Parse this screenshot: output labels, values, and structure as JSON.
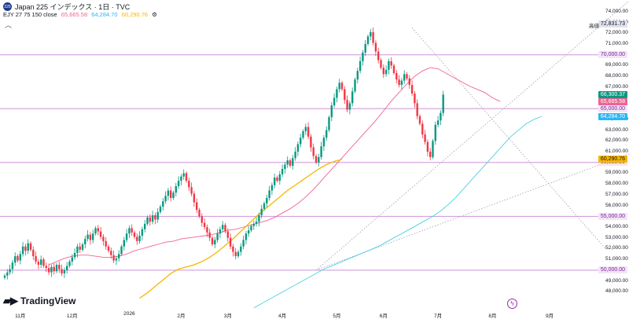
{
  "header": {
    "badge": "225",
    "title": "Japan 225 インデックス · 1日 · TVC",
    "indicator_label": "EJY 27 75 150 close",
    "ma_values": [
      {
        "text": "65,665.58",
        "color": "#f06292"
      },
      {
        "text": "64,284.70",
        "color": "#4dd0e1"
      },
      {
        "text": "60,290.76",
        "color": "#f5b700"
      }
    ],
    "settings_icon": "gear-icon",
    "collapse_icon": "chevron-up-icon"
  },
  "logo_text": "TradingView",
  "high_label": "高値",
  "price_tags": {
    "high": {
      "text": "72,831.73",
      "value": 72831.73,
      "bg": "#e0e3eb",
      "fg": "#131722"
    },
    "last": {
      "text": "66,300.37",
      "value": 66300.37,
      "bg": "#089981",
      "fg": "#ffffff"
    },
    "ma27": {
      "text": "65,665.58",
      "value": 65665.58,
      "bg": "#f06292",
      "fg": "#ffffff"
    },
    "ma75": {
      "text": "64,284.70",
      "value": 64284.7,
      "bg": "#29b6f6",
      "fg": "#ffffff"
    },
    "ma150": {
      "text": "60,290.76",
      "value": 60290.76,
      "bg": "#f5b700",
      "fg": "#131722"
    }
  },
  "hlines": [
    {
      "text": "70,000.00",
      "value": 70000
    },
    {
      "text": "65,000.00",
      "value": 65000
    },
    {
      "text": "60,000.00",
      "value": 60000
    },
    {
      "text": "55,000.00",
      "value": 55000
    },
    {
      "text": "50,000.00",
      "value": 50000
    }
  ],
  "colors": {
    "up": "#089981",
    "down": "#f23645",
    "hline": "#ce93d8",
    "ma27": "#f06292",
    "ma75": "#4dd0e1",
    "ma150": "#f5b700",
    "trend": "#9e9eaf"
  },
  "chart_data": {
    "type": "candlestick",
    "title": "Japan 225 インデックス · 1日 · TVC",
    "ylim": [
      47000,
      74500
    ],
    "y_ticks": [
      "74,000.00",
      "73,000.00",
      "72,000.00",
      "71,000.00",
      "69,000.00",
      "68,000.00",
      "67,000.00",
      "64,000.00",
      "63,000.00",
      "62,000.00",
      "61,000.00",
      "59,000.00",
      "58,000.00",
      "57,000.00",
      "56,000.00",
      "54,000.00",
      "53,000.00",
      "52,000.00",
      "51,000.00",
      "49,000.00",
      "48,000.00"
    ],
    "y_tick_values": [
      74000,
      73000,
      72000,
      71000,
      69000,
      68000,
      67000,
      64000,
      63000,
      62000,
      61000,
      59000,
      58000,
      57000,
      56000,
      54000,
      53000,
      52000,
      51000,
      49000,
      48000
    ],
    "x_ticks": [
      "11月",
      "12月",
      "2026",
      "2月",
      "3月",
      "4月",
      "5月",
      "6月",
      "7月",
      "8月",
      "9月"
    ],
    "x_tick_index": [
      6,
      26,
      48,
      68,
      86,
      107,
      128,
      146,
      167,
      188,
      210
    ],
    "close": [
      49500,
      49800,
      50100,
      50700,
      51300,
      50900,
      51500,
      52200,
      51800,
      52500,
      51900,
      51300,
      50800,
      50500,
      51000,
      50400,
      50200,
      49800,
      50300,
      49900,
      50500,
      50100,
      49700,
      50000,
      50400,
      50800,
      51200,
      51600,
      52200,
      51900,
      52400,
      52900,
      53300,
      52800,
      53400,
      53900,
      53600,
      53100,
      52700,
      52200,
      51800,
      51400,
      50900,
      51100,
      51500,
      52200,
      52800,
      53400,
      53900,
      53500,
      53100,
      52700,
      53200,
      53800,
      54300,
      54900,
      54500,
      55100,
      54700,
      55400,
      55900,
      56400,
      56900,
      57400,
      56700,
      57200,
      57800,
      58300,
      58700,
      59000,
      58300,
      57700,
      57100,
      56300,
      55600,
      55000,
      54400,
      54000,
      53500,
      53000,
      52400,
      52800,
      53400,
      53800,
      54200,
      53600,
      53000,
      52200,
      51700,
      51300,
      51700,
      52200,
      52800,
      53400,
      53700,
      54100,
      54300,
      54500,
      55100,
      55700,
      56200,
      56700,
      57400,
      57900,
      58600,
      58300,
      58900,
      59400,
      59800,
      60200,
      59700,
      60400,
      61000,
      61700,
      62300,
      62900,
      63300,
      62400,
      61400,
      60600,
      60000,
      60500,
      61500,
      62300,
      63000,
      64200,
      65300,
      66000,
      66800,
      67400,
      66800,
      65800,
      64900,
      65500,
      66600,
      67700,
      68500,
      69400,
      70200,
      71000,
      71700,
      72100,
      71100,
      70300,
      69500,
      68800,
      68200,
      68600,
      69400,
      69000,
      68300,
      67700,
      67200,
      67600,
      68200,
      67800,
      67200,
      66400,
      65500,
      64300,
      63600,
      62600,
      61900,
      61000,
      60500,
      62000,
      63500,
      63900,
      64600,
      66300
    ],
    "series": [
      {
        "name": "MA 27",
        "values": [
          50500,
          50800,
          51100,
          51300,
          51400,
          51400,
          51300,
          51200,
          51200,
          51300,
          51500,
          51800,
          52000,
          52200,
          52400,
          52600,
          52700,
          52900,
          53000,
          53100,
          53200,
          53300,
          53500,
          53700,
          53800,
          54000,
          54200,
          54400,
          54600,
          54900,
          55300,
          55700,
          56200,
          56800,
          57500,
          58300,
          59100,
          59900,
          60700,
          61500,
          62300,
          63100,
          63900,
          64800,
          65700,
          66500,
          67300,
          68000,
          68500,
          68800,
          68700,
          68300,
          67900,
          67500,
          67100,
          66800,
          66500,
          66000,
          65665.58
        ]
      },
      {
        "name": "MA 75",
        "values": [
          46500,
          46900,
          47300,
          47700,
          48100,
          48500,
          48900,
          49300,
          49700,
          50100,
          50400,
          50700,
          51000,
          51300,
          51600,
          51900,
          52200,
          52600,
          53000,
          53400,
          53800,
          54200,
          54600,
          55000,
          55500,
          56100,
          56800,
          57600,
          58400,
          59200,
          60000,
          60800,
          61600,
          62400,
          63000,
          63600,
          64000,
          64284.7
        ]
      },
      {
        "name": "MA 150",
        "values": [
          47400,
          47900,
          48500,
          49100,
          49700,
          50100,
          50300,
          50500,
          50800,
          51200,
          51700,
          52300,
          52900,
          53600,
          54300,
          55000,
          55600,
          56200,
          56800,
          57400,
          57900,
          58400,
          58900,
          59400,
          59800,
          60100,
          60290.76
        ]
      }
    ],
    "series_start_index": [
      17,
      96,
      52
    ],
    "series_index_step": 3
  }
}
